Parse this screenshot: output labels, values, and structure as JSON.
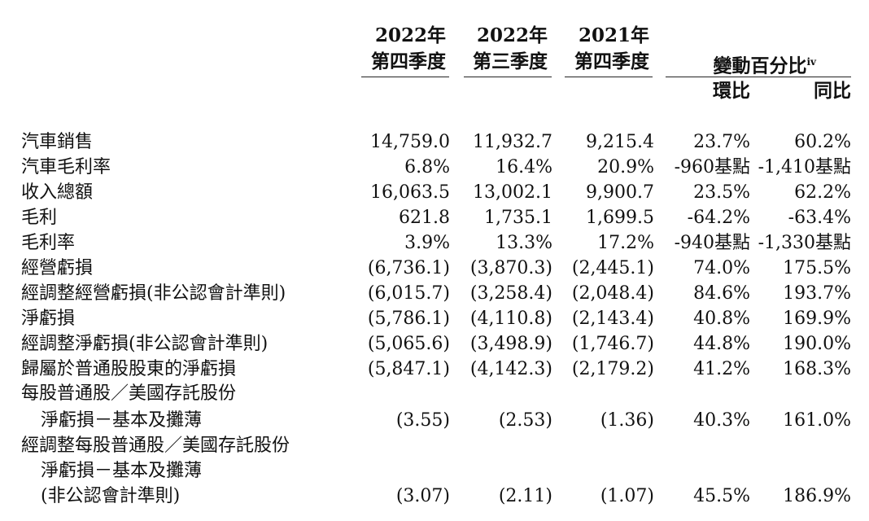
{
  "header": {
    "col1_year": "2022年",
    "col1_period": "第四季度",
    "col2_year": "2022年",
    "col2_period": "第三季度",
    "col3_year": "2021年",
    "col3_period": "第四季度",
    "change_title": "變動百分比",
    "change_note": "iv",
    "qoq": "環比",
    "yoy": "同比"
  },
  "rows": [
    {
      "label": "汽車銷售",
      "values": [
        "14,759.0",
        "11,932.7",
        "9,215.4",
        "23.7%",
        "60.2%"
      ]
    },
    {
      "label": "汽車毛利率",
      "values": [
        "6.8%",
        "16.4%",
        "20.9%",
        "-960基點",
        "-1,410基點"
      ]
    },
    {
      "label": "收入總額",
      "values": [
        "16,063.5",
        "13,002.1",
        "9,900.7",
        "23.5%",
        "62.2%"
      ]
    },
    {
      "label": "毛利",
      "values": [
        "621.8",
        "1,735.1",
        "1,699.5",
        "-64.2%",
        "-63.4%"
      ]
    },
    {
      "label": "毛利率",
      "values": [
        "3.9%",
        "13.3%",
        "17.2%",
        "-940基點",
        "-1,330基點"
      ]
    },
    {
      "label": "經營虧損",
      "values": [
        "(6,736.1)",
        "(3,870.3)",
        "(2,445.1)",
        "74.0%",
        "175.5%"
      ]
    },
    {
      "label": "經調整經營虧損(非公認會計準則)",
      "values": [
        "(6,015.7)",
        "(3,258.4)",
        "(2,048.4)",
        "84.6%",
        "193.7%"
      ]
    },
    {
      "label": "淨虧損",
      "values": [
        "(5,786.1)",
        "(4,110.8)",
        "(2,143.4)",
        "40.8%",
        "169.9%"
      ]
    },
    {
      "label": "經調整淨虧損(非公認會計準則)",
      "values": [
        "(5,065.6)",
        "(3,498.9)",
        "(1,746.7)",
        "44.8%",
        "190.0%"
      ]
    },
    {
      "label": "歸屬於普通股股東的淨虧損",
      "values": [
        "(5,847.1)",
        "(4,142.3)",
        "(2,179.2)",
        "41.2%",
        "168.3%"
      ]
    }
  ],
  "eps_basic": {
    "label_line1": "每股普通股／美國存託股份",
    "label_line2": "淨虧損－基本及攤薄",
    "values": [
      "(3.55)",
      "(2.53)",
      "(1.36)",
      "40.3%",
      "161.0%"
    ]
  },
  "eps_adjusted": {
    "label_line1": "經調整每股普通股／美國存託股份",
    "label_line2": "淨虧損－基本及攤薄",
    "label_line3": "(非公認會計準則)",
    "values": [
      "(3.07)",
      "(2.11)",
      "(1.07)",
      "45.5%",
      "186.9%"
    ]
  }
}
